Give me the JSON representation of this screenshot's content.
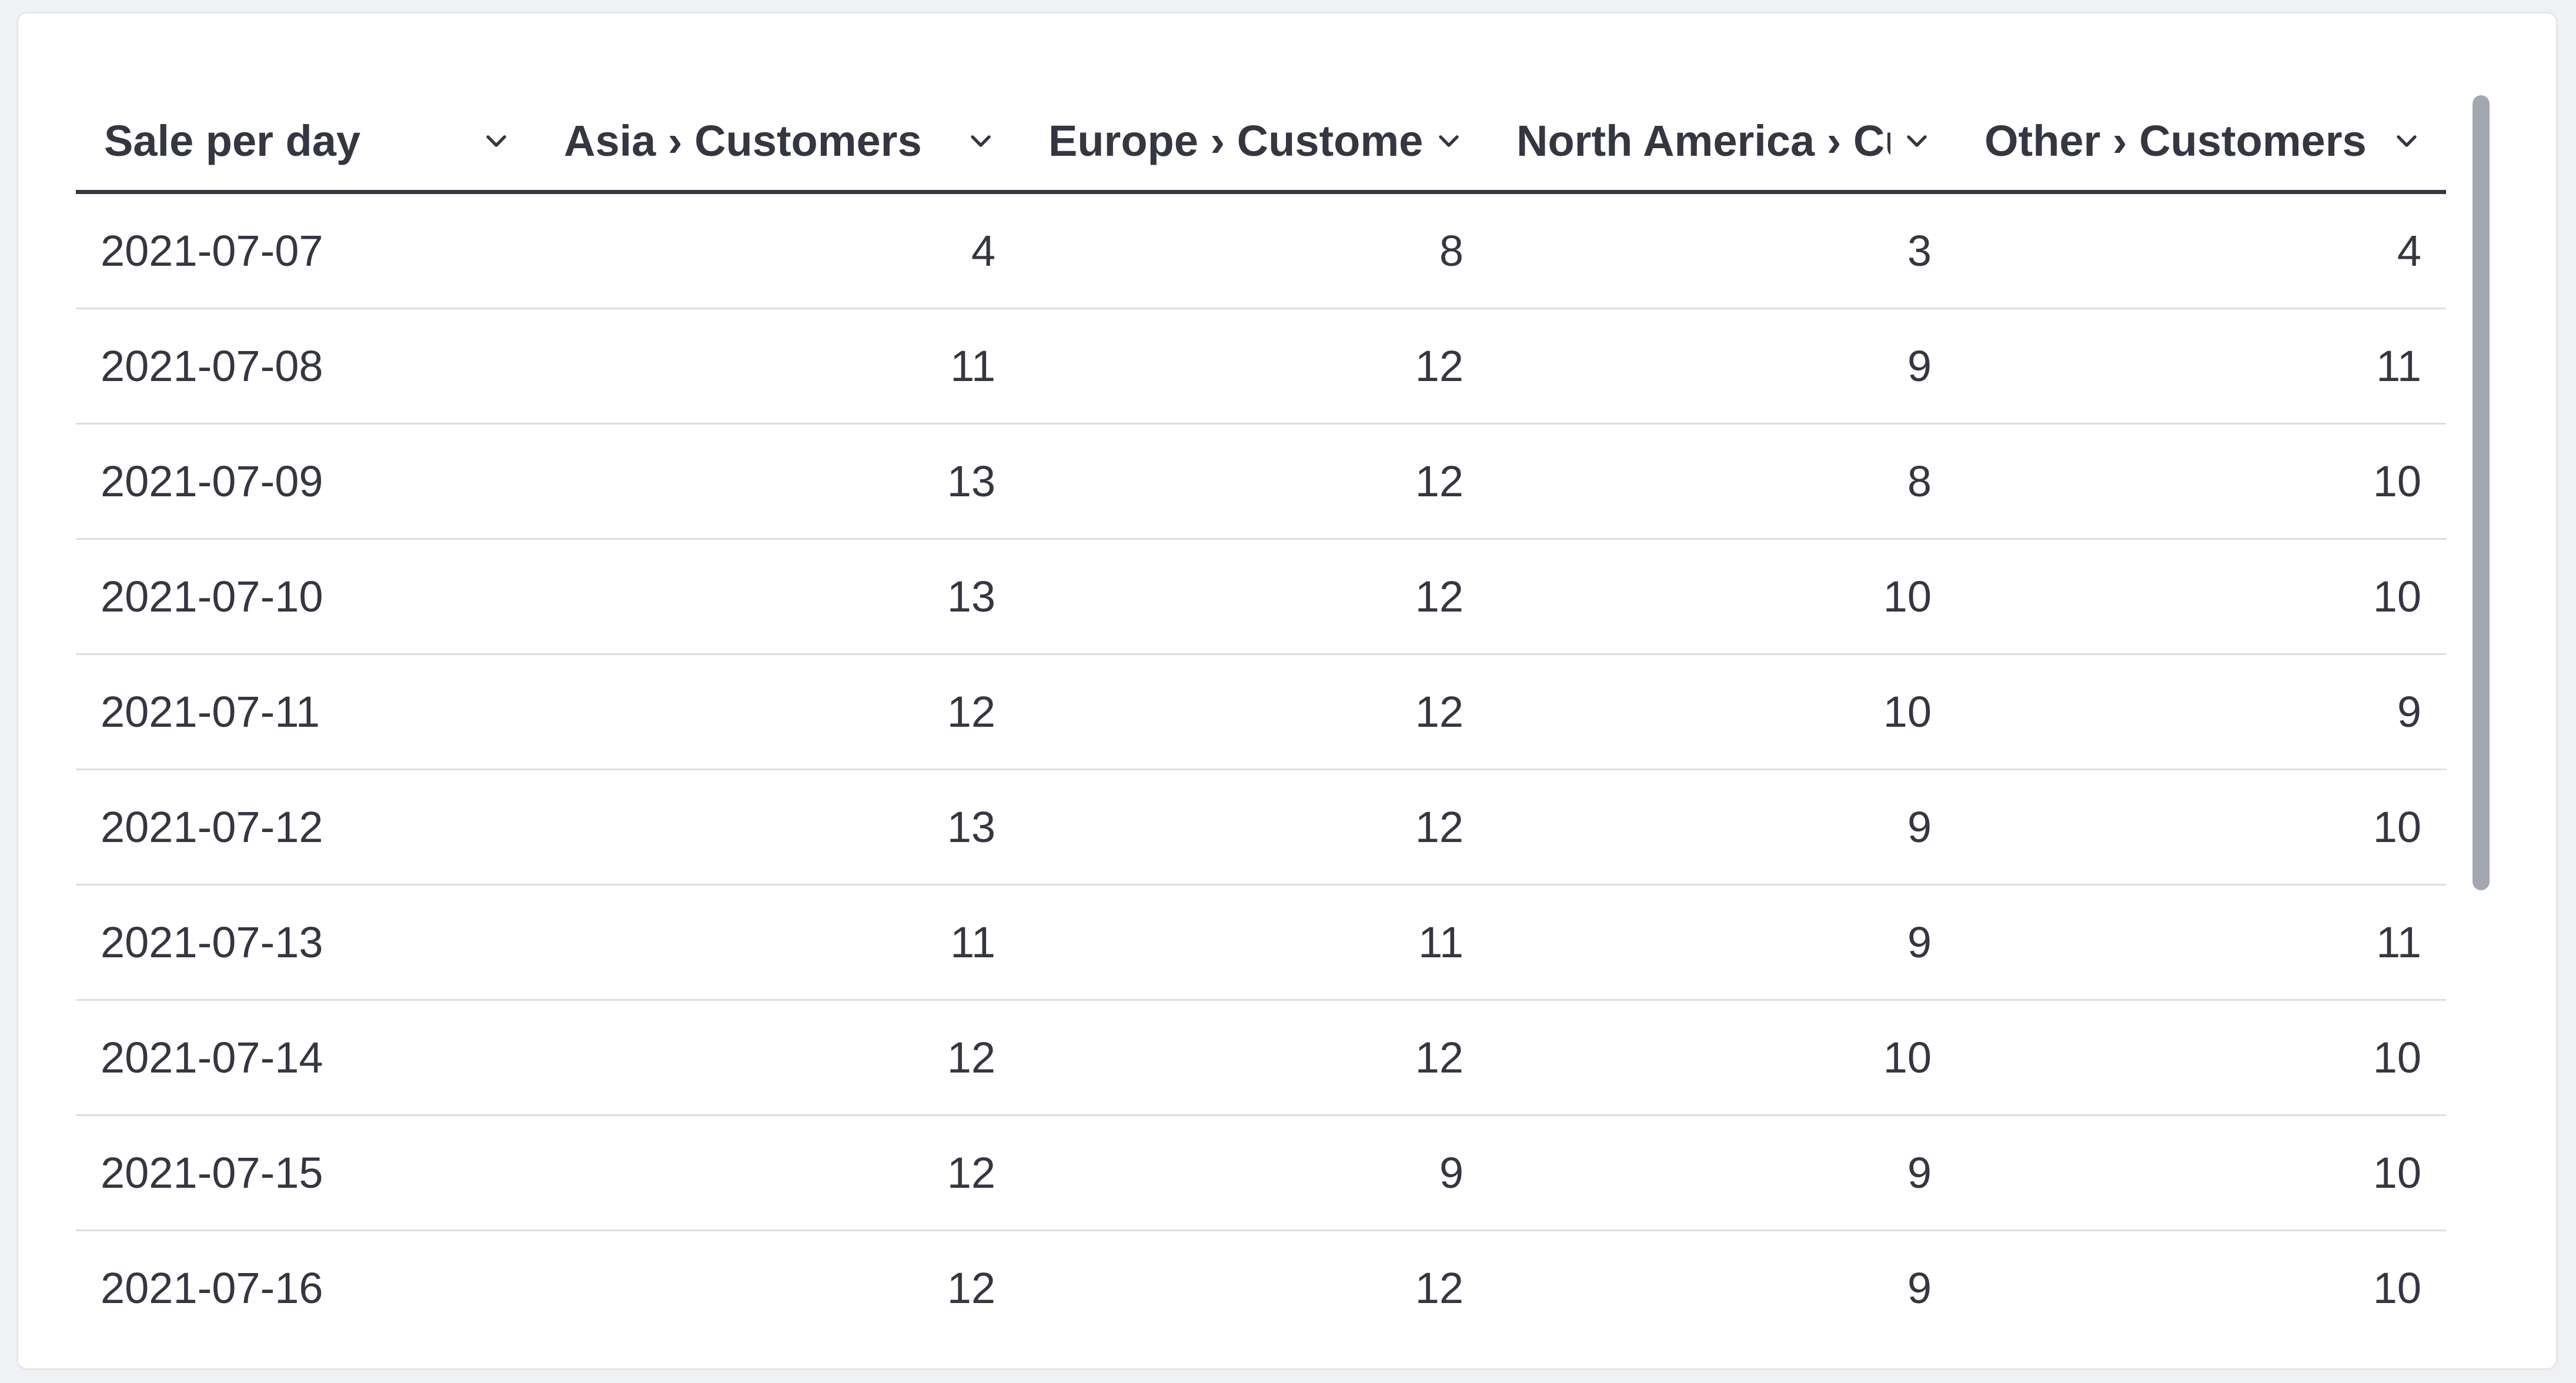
{
  "colors": {
    "page_background": "#f0f1f3",
    "panel_background": "#ffffff",
    "panel_border": "#e4e8ee",
    "text": "#343741",
    "header_underline": "#343741",
    "row_divider": "#d9dee6",
    "scrollbar_thumb": "#a3a8b0"
  },
  "icons": {
    "column_menu": "chevron-down-icon"
  },
  "chart_data": {
    "type": "table",
    "title": "Sale per day",
    "columns": [
      {
        "label": "Sale per day",
        "align": "left"
      },
      {
        "label": "Asia › Customers",
        "align": "right"
      },
      {
        "label": "Europe › Customers",
        "align": "right"
      },
      {
        "label": "North America › Customers",
        "align": "right"
      },
      {
        "label": "Other › Customers",
        "align": "right"
      }
    ],
    "rows": [
      [
        "2021-07-07",
        4,
        8,
        3,
        4
      ],
      [
        "2021-07-08",
        11,
        12,
        9,
        11
      ],
      [
        "2021-07-09",
        13,
        12,
        8,
        10
      ],
      [
        "2021-07-10",
        13,
        12,
        10,
        10
      ],
      [
        "2021-07-11",
        12,
        12,
        10,
        9
      ],
      [
        "2021-07-12",
        13,
        12,
        9,
        10
      ],
      [
        "2021-07-13",
        11,
        11,
        9,
        11
      ],
      [
        "2021-07-14",
        12,
        12,
        10,
        10
      ],
      [
        "2021-07-15",
        12,
        9,
        9,
        10
      ],
      [
        "2021-07-16",
        12,
        12,
        9,
        10
      ]
    ]
  }
}
